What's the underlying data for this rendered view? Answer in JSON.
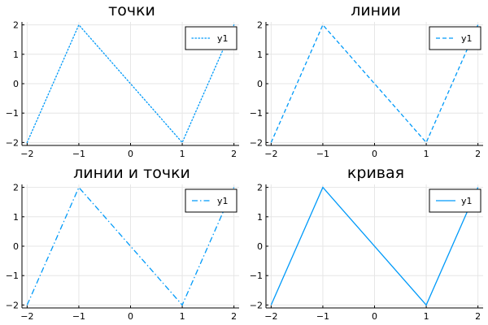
{
  "chart_data": [
    {
      "type": "line",
      "title": "точки",
      "line_style": "dotted",
      "x": [
        -2,
        -1,
        1,
        2
      ],
      "series": [
        {
          "name": "y1",
          "values": [
            -2,
            2,
            -2,
            2
          ],
          "color": "#009af9"
        }
      ],
      "xlim": [
        -2.1,
        2.1
      ],
      "ylim": [
        -2.1,
        2.1
      ],
      "xticks": [
        -2,
        -1,
        0,
        1,
        2
      ],
      "yticks": [
        -2,
        -1,
        0,
        1,
        2
      ],
      "xtick_labels": [
        "−2",
        "−1",
        "0",
        "1",
        "2"
      ],
      "ytick_labels": [
        "−2",
        "−1",
        "0",
        "1",
        "2"
      ],
      "grid": true,
      "legend": "top-right"
    },
    {
      "type": "line",
      "title": "линии",
      "line_style": "dashed",
      "x": [
        -2,
        -1,
        1,
        2
      ],
      "series": [
        {
          "name": "y1",
          "values": [
            -2,
            2,
            -2,
            2
          ],
          "color": "#009af9"
        }
      ],
      "xlim": [
        -2.1,
        2.1
      ],
      "ylim": [
        -2.1,
        2.1
      ],
      "xticks": [
        -2,
        -1,
        0,
        1,
        2
      ],
      "yticks": [
        -2,
        -1,
        0,
        1,
        2
      ],
      "xtick_labels": [
        "−2",
        "−1",
        "0",
        "1",
        "2"
      ],
      "ytick_labels": [
        "−2",
        "−1",
        "0",
        "1",
        "2"
      ],
      "grid": true,
      "legend": "top-right"
    },
    {
      "type": "line",
      "title": "линии и точки",
      "line_style": "dash-dot",
      "x": [
        -2,
        -1,
        1,
        2
      ],
      "series": [
        {
          "name": "y1",
          "values": [
            -2,
            2,
            -2,
            2
          ],
          "color": "#009af9"
        }
      ],
      "xlim": [
        -2.1,
        2.1
      ],
      "ylim": [
        -2.1,
        2.1
      ],
      "xticks": [
        -2,
        -1,
        0,
        1,
        2
      ],
      "yticks": [
        -2,
        -1,
        0,
        1,
        2
      ],
      "xtick_labels": [
        "−2",
        "−1",
        "0",
        "1",
        "2"
      ],
      "ytick_labels": [
        "−2",
        "−1",
        "0",
        "1",
        "2"
      ],
      "grid": true,
      "legend": "top-right"
    },
    {
      "type": "line",
      "title": "кривая",
      "line_style": "solid",
      "x": [
        -2,
        -1,
        1,
        2
      ],
      "series": [
        {
          "name": "y1",
          "values": [
            -2,
            2,
            -2,
            2
          ],
          "color": "#009af9"
        }
      ],
      "xlim": [
        -2.1,
        2.1
      ],
      "ylim": [
        -2.1,
        2.1
      ],
      "xticks": [
        -2,
        -1,
        0,
        1,
        2
      ],
      "yticks": [
        -2,
        -1,
        0,
        1,
        2
      ],
      "xtick_labels": [
        "−2",
        "−1",
        "0",
        "1",
        "2"
      ],
      "ytick_labels": [
        "−2",
        "−1",
        "0",
        "1",
        "2"
      ],
      "grid": true,
      "legend": "top-right"
    }
  ]
}
